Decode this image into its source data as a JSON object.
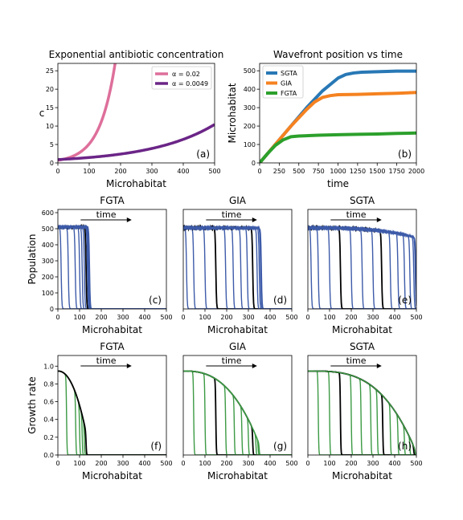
{
  "chart_data": [
    {
      "id": "a",
      "type": "line",
      "title": "Exponential antibiotic concentration",
      "xlabel": "Microhabitat",
      "ylabel": "c",
      "panel_label": "(a)",
      "xlim": [
        0,
        500
      ],
      "ylim": [
        0,
        27
      ],
      "xticks": [
        0,
        100,
        200,
        300,
        400,
        500
      ],
      "yticks": [
        0,
        5,
        10,
        15,
        20,
        25
      ],
      "legend": "top-right",
      "series": [
        {
          "name": "α = 0.02",
          "color": "#de6f9b",
          "alpha": 0.02,
          "c0": 0.7
        },
        {
          "name": "α = 0.0049",
          "color": "#6b2587",
          "alpha": 0.0049,
          "c0": 0.9
        }
      ]
    },
    {
      "id": "b",
      "type": "line",
      "title": "Wavefront position vs time",
      "xlabel": "time",
      "ylabel": "Microhabitat",
      "panel_label": "(b)",
      "xlim": [
        0,
        2000
      ],
      "ylim": [
        0,
        540
      ],
      "xticks": [
        0,
        250,
        500,
        750,
        1000,
        1250,
        1500,
        1750,
        2000
      ],
      "yticks": [
        0,
        100,
        200,
        300,
        400,
        500
      ],
      "legend": "top-left",
      "series": [
        {
          "name": "SGTA",
          "color": "#2878b5",
          "x": [
            0,
            200,
            400,
            600,
            800,
            1000,
            1100,
            1200,
            1300,
            1500,
            1750,
            2000
          ],
          "y": [
            0,
            100,
            200,
            300,
            390,
            460,
            480,
            488,
            492,
            495,
            498,
            498
          ]
        },
        {
          "name": "GIA",
          "color": "#f58220",
          "x": [
            0,
            200,
            400,
            600,
            700,
            800,
            900,
            1000,
            1250,
            1500,
            1750,
            2000
          ],
          "y": [
            0,
            100,
            200,
            290,
            330,
            355,
            365,
            370,
            372,
            375,
            378,
            382
          ]
        },
        {
          "name": "FGTA",
          "color": "#2ca02c",
          "x": [
            0,
            100,
            200,
            300,
            400,
            500,
            750,
            1000,
            1250,
            1500,
            1750,
            2000
          ],
          "y": [
            0,
            50,
            95,
            125,
            142,
            146,
            150,
            153,
            155,
            157,
            160,
            162
          ]
        }
      ]
    },
    {
      "id": "c",
      "type": "line",
      "title": "FGTA",
      "xlabel": "Microhabitat",
      "ylabel": "Population",
      "panel_label": "(c)",
      "annotation": "time",
      "xlim": [
        0,
        500
      ],
      "ylim": [
        0,
        620
      ],
      "xticks": [
        0,
        100,
        200,
        300,
        400,
        500
      ],
      "yticks": [
        0,
        100,
        200,
        300,
        400,
        500,
        600
      ],
      "plateau": 510,
      "color": "#3d5ba9",
      "highlight_color": "#000000",
      "fronts": [
        15,
        48,
        80,
        100,
        112,
        122,
        130,
        136,
        140,
        143,
        146
      ],
      "highlight": [
        130
      ]
    },
    {
      "id": "d",
      "type": "line",
      "title": "GIA",
      "xlabel": "Microhabitat",
      "panel_label": "(d)",
      "annotation": "time",
      "xlim": [
        0,
        500
      ],
      "ylim": [
        0,
        620
      ],
      "xticks": [
        0,
        100,
        200,
        300,
        400,
        500
      ],
      "yticks": [],
      "plateau": 505,
      "color": "#3d5ba9",
      "highlight_color": "#000000",
      "fronts": [
        15,
        48,
        100,
        150,
        195,
        230,
        265,
        295,
        320,
        340,
        350,
        356,
        360
      ],
      "highlight": [
        150,
        320
      ]
    },
    {
      "id": "e",
      "type": "line",
      "title": "SGTA",
      "xlabel": "Microhabitat",
      "panel_label": "(e)",
      "annotation": "time",
      "xlim": [
        0,
        500
      ],
      "ylim": [
        0,
        620
      ],
      "xticks": [
        0,
        100,
        200,
        300,
        400,
        500
      ],
      "yticks": [],
      "plateau": 505,
      "color": "#3d5ba9",
      "highlight_color": "#000000",
      "fronts": [
        15,
        48,
        100,
        150,
        200,
        250,
        300,
        340,
        380,
        415,
        445,
        470,
        488,
        495,
        498
      ],
      "highlight": [
        150,
        340
      ]
    },
    {
      "id": "f",
      "type": "line",
      "title": "FGTA",
      "xlabel": "Microhabitat",
      "ylabel": "Growth rate",
      "panel_label": "(f)",
      "annotation": "time",
      "xlim": [
        0,
        500
      ],
      "ylim": [
        0,
        1.12
      ],
      "xticks": [
        0,
        100,
        200,
        300,
        400,
        500
      ],
      "yticks": [
        0.0,
        0.2,
        0.4,
        0.6,
        0.8,
        1.0
      ],
      "g0": 0.945,
      "alpha": 0.02,
      "c0": 0.7,
      "color": "#3c9a44",
      "highlight_color": "#000000",
      "fronts": [
        40,
        82,
        100,
        112,
        122,
        130
      ],
      "highlight": [
        130
      ]
    },
    {
      "id": "g",
      "type": "line",
      "title": "GIA",
      "xlabel": "Microhabitat",
      "panel_label": "(g)",
      "annotation": "time",
      "xlim": [
        0,
        500
      ],
      "ylim": [
        0,
        1.12
      ],
      "xticks": [
        0,
        100,
        200,
        300,
        400,
        500
      ],
      "yticks": [],
      "g0": 0.945,
      "alpha": 0.0049,
      "c0": 0.9,
      "color": "#3c9a44",
      "highlight_color": "#000000",
      "fronts": [
        48,
        100,
        150,
        195,
        235,
        270,
        300,
        320,
        335,
        345,
        350
      ],
      "highlight": [
        150,
        320
      ]
    },
    {
      "id": "h",
      "type": "line",
      "title": "SGTA",
      "xlabel": "Microhabitat",
      "panel_label": "(h)",
      "annotation": "time",
      "xlim": [
        0,
        500
      ],
      "ylim": [
        0,
        1.12
      ],
      "xticks": [
        0,
        100,
        200,
        300,
        400,
        500
      ],
      "yticks": [],
      "g0": 0.945,
      "alpha": 0.0049,
      "c0": 0.9,
      "color": "#3c9a44",
      "highlight_color": "#000000",
      "fronts": [
        48,
        100,
        150,
        200,
        245,
        290,
        320,
        345,
        380,
        415,
        445,
        470,
        488,
        495
      ],
      "highlight": [
        150,
        345,
        488
      ]
    }
  ]
}
